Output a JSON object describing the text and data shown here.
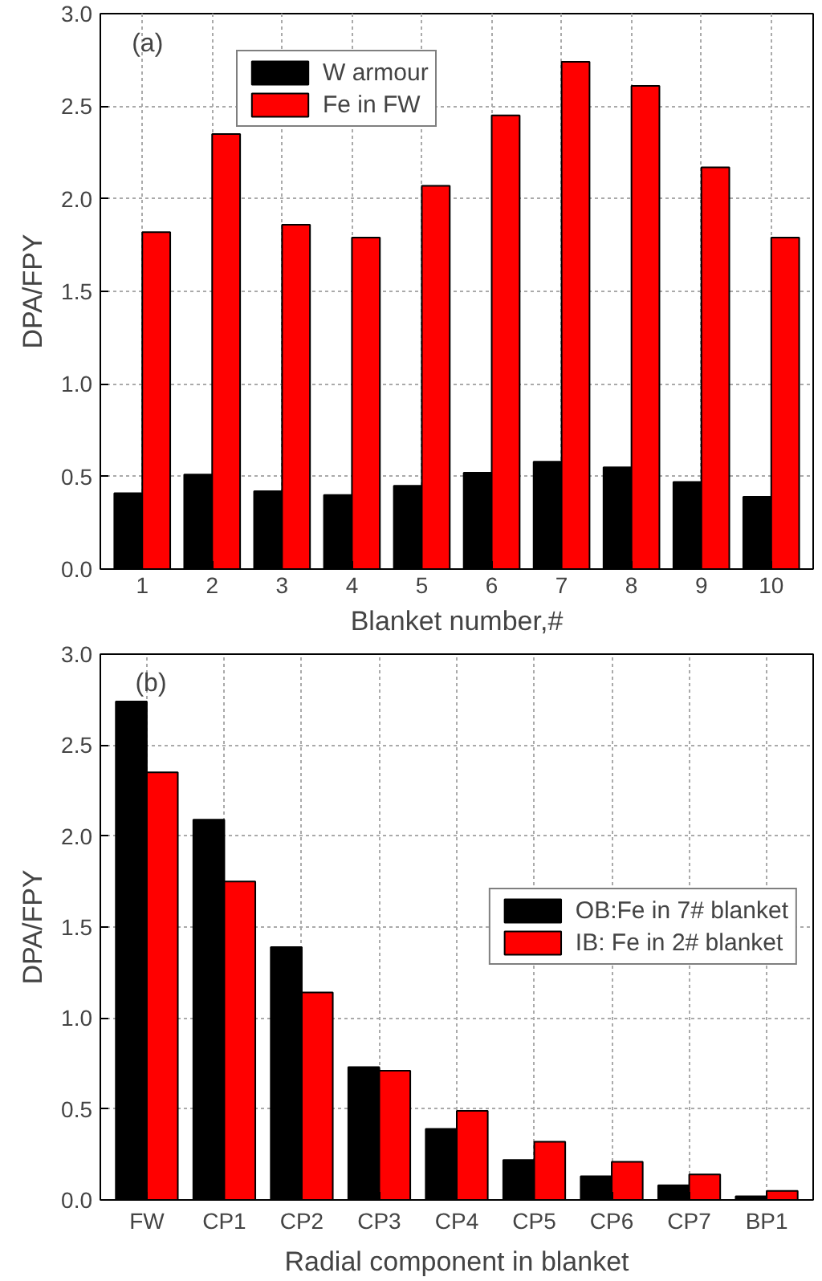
{
  "chart_data": [
    {
      "type": "bar",
      "ylabel": "DPA/FPY",
      "xlabel": "Blanket number,#",
      "annotations": [
        "(a)"
      ],
      "categories": [
        "1",
        "2",
        "3",
        "4",
        "5",
        "6",
        "7",
        "8",
        "9",
        "10"
      ],
      "series": [
        {
          "name": "W armour",
          "color": "#000000",
          "values": [
            0.41,
            0.51,
            0.42,
            0.4,
            0.45,
            0.52,
            0.58,
            0.55,
            0.47,
            0.39
          ]
        },
        {
          "name": "Fe in FW",
          "color": "#ff0000",
          "values": [
            1.82,
            2.35,
            1.86,
            1.79,
            2.07,
            2.45,
            2.74,
            2.61,
            2.17,
            1.79
          ]
        }
      ],
      "ylim": [
        0,
        3.0
      ],
      "yticks": [
        {
          "value": 0,
          "label": "0.0"
        },
        0.5,
        {
          "value": 1,
          "label": "1.0"
        },
        1.5,
        {
          "value": 2,
          "label": "2.0"
        },
        2.5,
        {
          "value": 3,
          "label": "3.0"
        }
      ],
      "grid": true,
      "legend": "top left"
    },
    {
      "type": "bar",
      "ylabel": "DPA/FPY",
      "xlabel": "Radial component in blanket",
      "annotations": [
        "(b)"
      ],
      "categories": [
        "FW",
        "CP1",
        "CP2",
        "CP3",
        "CP4",
        "CP5",
        "CP6",
        "CP7",
        "BP1"
      ],
      "series": [
        {
          "name": "OB:Fe in 7# blanket",
          "color": "#000000",
          "values": [
            2.74,
            2.09,
            1.39,
            0.73,
            0.39,
            0.22,
            0.13,
            0.08,
            0.02
          ]
        },
        {
          "name": "IB: Fe in 2# blanket",
          "color": "#ff0000",
          "values": [
            2.35,
            1.75,
            1.14,
            0.71,
            0.49,
            0.32,
            0.21,
            0.14,
            0.05
          ]
        }
      ],
      "ylim": [
        0,
        3.0
      ],
      "yticks": [
        {
          "value": 0,
          "label": "0.0"
        },
        0.5,
        {
          "value": 1,
          "label": "1.0"
        },
        1.5,
        {
          "value": 2,
          "label": "2.0"
        },
        2.5,
        {
          "value": 3,
          "label": "3.0"
        }
      ],
      "grid": true,
      "legend": "right"
    }
  ]
}
